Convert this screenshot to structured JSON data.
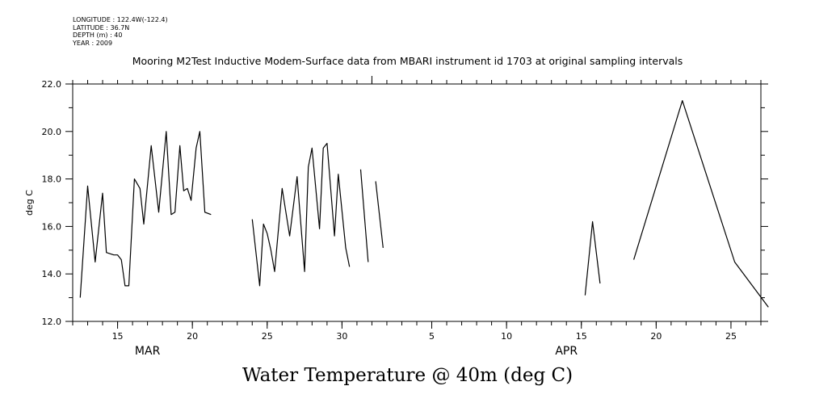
{
  "header": {
    "longitude": "LONGITUDE : 122.4W(-122.4)",
    "latitude": "LATITUDE : 36.7N",
    "depth": "DEPTH (m) : 40",
    "year": "YEAR : 2009",
    "title": "Mooring M2Test Inductive Modem-Surface data from MBARI instrument id 1703 at original sampling intervals"
  },
  "footer_title": "Water Temperature @ 40m (deg C)",
  "chart_data": {
    "type": "line",
    "title": "Mooring M2Test Inductive Modem-Surface data from MBARI instrument id 1703 at original sampling intervals",
    "ylabel": "deg C",
    "xlabel": "",
    "ylim": [
      12.0,
      22.0
    ],
    "yticks": [
      12.0,
      14.0,
      16.0,
      18.0,
      20.0,
      22.0
    ],
    "ytick_labels": [
      "12.0",
      "14.0",
      "16.0",
      "18.0",
      "20.0",
      "22.0"
    ],
    "xlim": [
      "2009-03-12",
      "2009-04-27"
    ],
    "xticks": [
      {
        "date": "2009-03-15",
        "label": "15"
      },
      {
        "date": "2009-03-20",
        "label": "20"
      },
      {
        "date": "2009-03-25",
        "label": "25"
      },
      {
        "date": "2009-03-30",
        "label": "30"
      },
      {
        "date": "2009-04-05",
        "label": "5"
      },
      {
        "date": "2009-04-10",
        "label": "10"
      },
      {
        "date": "2009-04-15",
        "label": "15"
      },
      {
        "date": "2009-04-20",
        "label": "20"
      },
      {
        "date": "2009-04-25",
        "label": "25"
      }
    ],
    "month_labels": [
      {
        "date": "2009-03-17",
        "label": "MAR"
      },
      {
        "date": "2009-04-14",
        "label": "APR"
      }
    ],
    "grid": false,
    "series": [
      {
        "segments": [
          [
            [
              "2009-03-12T12:00",
              13.0
            ],
            [
              "2009-03-13T00:00",
              17.7
            ],
            [
              "2009-03-13T12:00",
              14.5
            ],
            [
              "2009-03-14T00:00",
              17.4
            ],
            [
              "2009-03-14T06:00",
              14.9
            ],
            [
              "2009-03-14T18:00",
              14.8
            ],
            [
              "2009-03-15T00:00",
              14.8
            ],
            [
              "2009-03-15T06:00",
              14.6
            ],
            [
              "2009-03-15T12:00",
              13.5
            ],
            [
              "2009-03-15T18:00",
              13.5
            ],
            [
              "2009-03-16T03:00",
              18.0
            ],
            [
              "2009-03-16T12:00",
              17.6
            ],
            [
              "2009-03-16T18:00",
              16.1
            ],
            [
              "2009-03-17T06:00",
              19.4
            ],
            [
              "2009-03-17T18:00",
              16.6
            ],
            [
              "2009-03-18T06:00",
              20.0
            ],
            [
              "2009-03-18T14:00",
              16.5
            ],
            [
              "2009-03-18T20:00",
              16.6
            ],
            [
              "2009-03-19T04:00",
              19.4
            ],
            [
              "2009-03-19T10:00",
              17.5
            ],
            [
              "2009-03-19T16:00",
              17.6
            ],
            [
              "2009-03-19T22:00",
              17.1
            ],
            [
              "2009-03-20T06:00",
              19.3
            ],
            [
              "2009-03-20T12:00",
              20.0
            ],
            [
              "2009-03-20T20:00",
              16.6
            ],
            [
              "2009-03-21T06:00",
              16.5
            ]
          ],
          [
            [
              "2009-03-24T00:00",
              16.3
            ],
            [
              "2009-03-24T12:00",
              13.5
            ],
            [
              "2009-03-24T18:00",
              16.1
            ],
            [
              "2009-03-25T00:00",
              15.7
            ],
            [
              "2009-03-25T06:00",
              15.0
            ],
            [
              "2009-03-25T12:00",
              14.1
            ],
            [
              "2009-03-26T00:00",
              17.6
            ],
            [
              "2009-03-26T12:00",
              15.6
            ],
            [
              "2009-03-27T00:00",
              18.1
            ],
            [
              "2009-03-27T12:00",
              14.1
            ],
            [
              "2009-03-27T18:00",
              18.5
            ],
            [
              "2009-03-28T00:00",
              19.3
            ],
            [
              "2009-03-28T12:00",
              15.9
            ],
            [
              "2009-03-28T18:00",
              19.3
            ],
            [
              "2009-03-29T00:00",
              19.5
            ],
            [
              "2009-03-29T12:00",
              15.6
            ],
            [
              "2009-03-29T18:00",
              18.2
            ],
            [
              "2009-03-30T06:00",
              15.1
            ],
            [
              "2009-03-30T12:00",
              14.3
            ]
          ],
          [
            [
              "2009-03-31T06:00",
              18.4
            ],
            [
              "2009-03-31T18:00",
              14.5
            ]
          ],
          [
            [
              "2009-04-01T06:00",
              17.9
            ],
            [
              "2009-04-01T18:00",
              15.1
            ]
          ],
          [
            [
              "2009-04-15T06:00",
              13.1
            ],
            [
              "2009-04-15T18:00",
              16.2
            ],
            [
              "2009-04-16T06:00",
              13.6
            ]
          ],
          [
            [
              "2009-04-18T12:00",
              14.6
            ],
            [
              "2009-04-21T18:00",
              21.3
            ],
            [
              "2009-04-25T06:00",
              14.5
            ],
            [
              "2009-04-27T12:00",
              12.6
            ]
          ]
        ]
      }
    ]
  }
}
